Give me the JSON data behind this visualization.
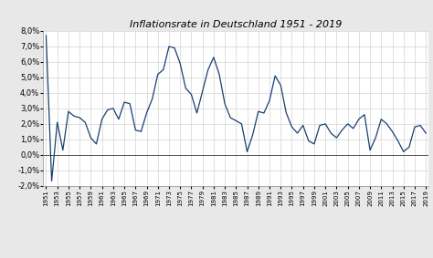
{
  "title": "Inflationsrate in Deutschland 1951 - 2019",
  "years": [
    1951,
    1952,
    1953,
    1954,
    1955,
    1956,
    1957,
    1958,
    1959,
    1960,
    1961,
    1962,
    1963,
    1964,
    1965,
    1966,
    1967,
    1968,
    1969,
    1970,
    1971,
    1972,
    1973,
    1974,
    1975,
    1976,
    1977,
    1978,
    1979,
    1980,
    1981,
    1982,
    1983,
    1984,
    1985,
    1986,
    1987,
    1988,
    1989,
    1990,
    1991,
    1992,
    1993,
    1994,
    1995,
    1996,
    1997,
    1998,
    1999,
    2000,
    2001,
    2002,
    2003,
    2004,
    2005,
    2006,
    2007,
    2008,
    2009,
    2010,
    2011,
    2012,
    2013,
    2014,
    2015,
    2016,
    2017,
    2018,
    2019
  ],
  "values": [
    7.7,
    -1.7,
    2.1,
    0.3,
    2.8,
    2.5,
    2.4,
    2.1,
    1.1,
    0.7,
    2.3,
    2.9,
    3.0,
    2.3,
    3.4,
    3.3,
    1.6,
    1.5,
    2.7,
    3.6,
    5.2,
    5.5,
    7.0,
    6.9,
    5.9,
    4.3,
    3.9,
    2.7,
    4.1,
    5.5,
    6.3,
    5.2,
    3.3,
    2.4,
    2.2,
    2.0,
    0.2,
    1.3,
    2.8,
    2.7,
    3.5,
    5.1,
    4.5,
    2.7,
    1.8,
    1.4,
    1.9,
    0.9,
    0.7,
    1.9,
    2.0,
    1.4,
    1.1,
    1.6,
    2.0,
    1.7,
    2.3,
    2.6,
    0.3,
    1.1,
    2.3,
    2.0,
    1.5,
    0.9,
    0.2,
    0.5,
    1.8,
    1.9,
    1.4
  ],
  "line_color": "#1a3f6f",
  "bg_color": "#e8e8e8",
  "plot_bg_color": "#ffffff",
  "ylim": [
    -2.0,
    8.0
  ],
  "ytick_step": 1.0,
  "title_fontsize": 8,
  "tick_fontsize": 5,
  "ytick_fontsize": 6
}
